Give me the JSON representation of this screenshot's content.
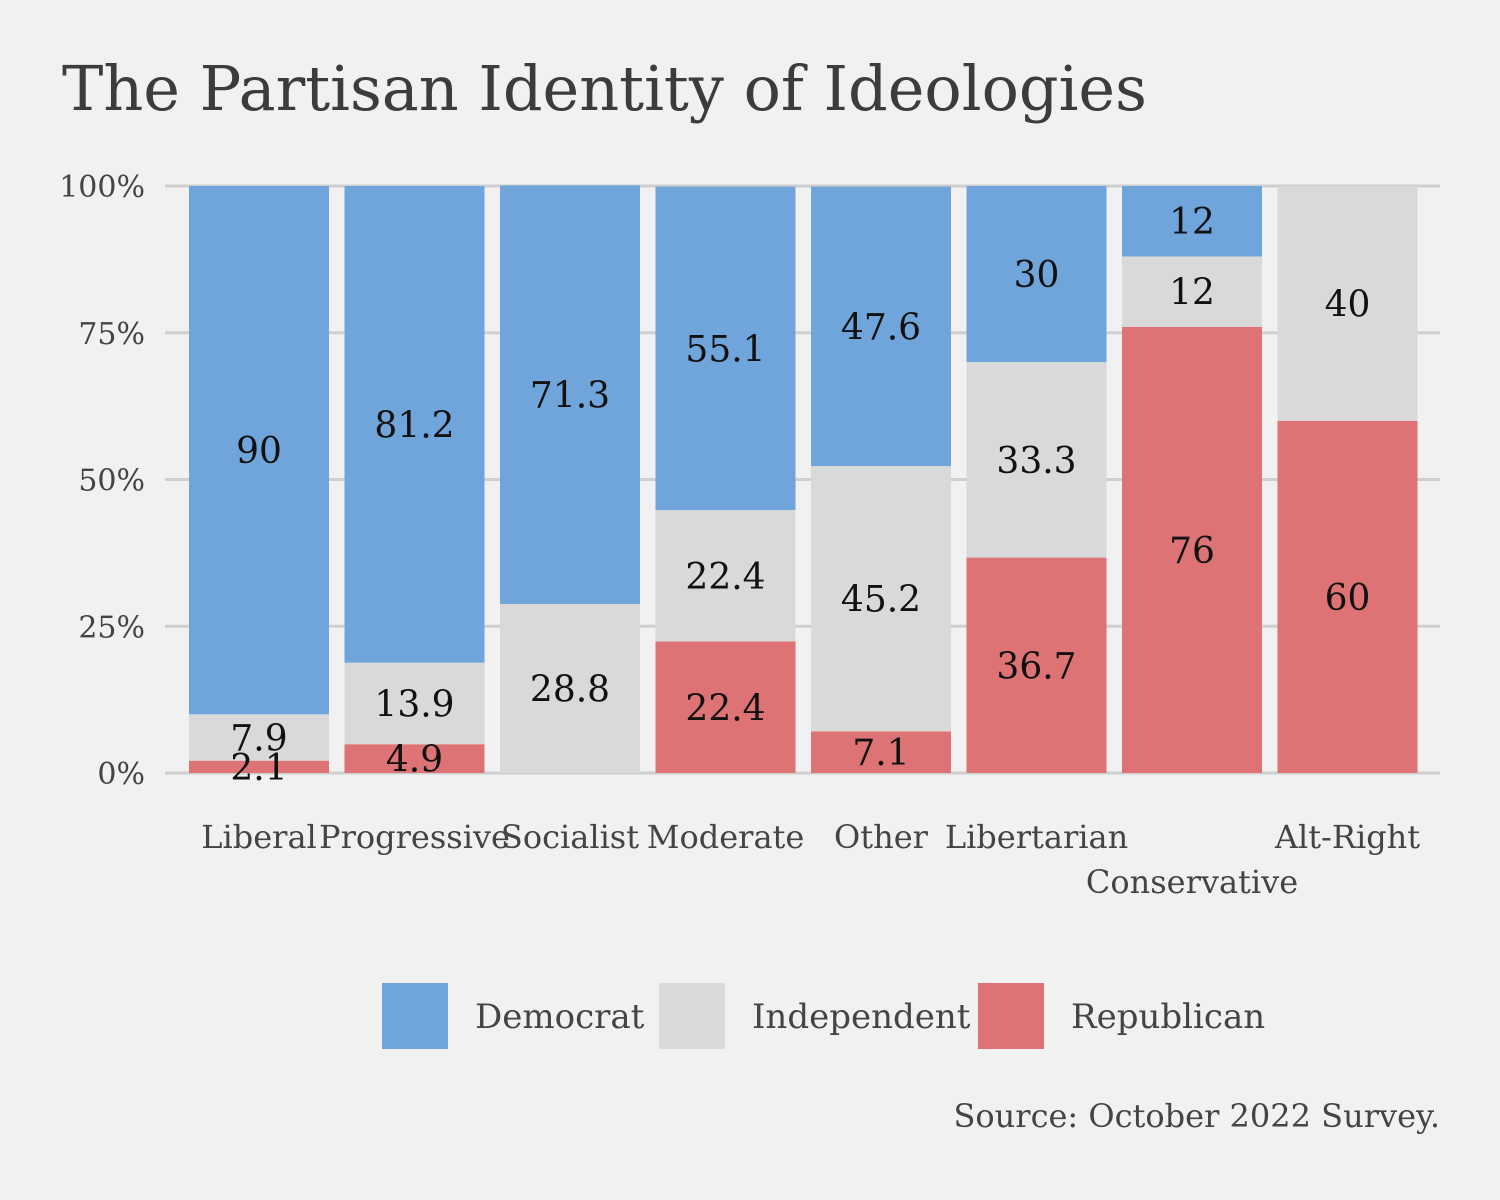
{
  "chart_data": {
    "type": "bar",
    "stacked": true,
    "title": "The Partisan Identity of Ideologies",
    "source": "Source: October 2022 Survey.",
    "ylim": [
      0,
      100
    ],
    "yticks": [
      0,
      25,
      50,
      75,
      100
    ],
    "ytick_labels": [
      "0%",
      "25%",
      "50%",
      "75%",
      "100%"
    ],
    "categories": [
      "Liberal",
      "Progressive",
      "Socialist",
      "Moderate",
      "Other",
      "Libertarian",
      "Conservative",
      "Alt-Right"
    ],
    "series": [
      {
        "name": "Republican",
        "color": "#dd7374",
        "values": [
          2.1,
          4.9,
          0,
          22.4,
          7.1,
          36.7,
          76,
          60
        ]
      },
      {
        "name": "Independent",
        "color": "#d9d9d9",
        "values": [
          7.9,
          13.9,
          28.8,
          22.4,
          45.2,
          33.3,
          12,
          40
        ]
      },
      {
        "name": "Democrat",
        "color": "#6fa5da",
        "values": [
          90,
          81.2,
          71.3,
          55.1,
          47.6,
          30,
          12,
          0
        ]
      }
    ],
    "legend": {
      "position": "bottom",
      "entries": [
        {
          "name": "Democrat",
          "color": "#6fa5da"
        },
        {
          "name": "Independent",
          "color": "#d9d9d9"
        },
        {
          "name": "Republican",
          "color": "#dd7374"
        }
      ]
    }
  }
}
